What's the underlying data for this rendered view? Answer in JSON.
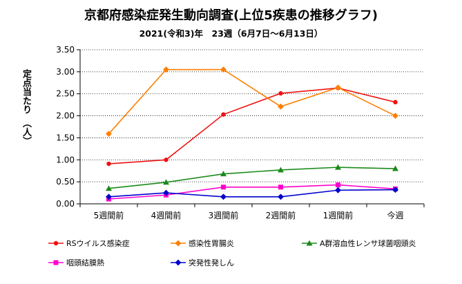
{
  "chart_data": {
    "type": "line",
    "title": "京都府感染症発生動向調査(上位5疾患の推移グラフ)",
    "subtitle": "2021(令和3)年　23週（6月7日～6月13日）",
    "ylabel": "定点当たり　（人）",
    "categories": [
      "5週間前",
      "4週間前",
      "3週間前",
      "2週間前",
      "1週間前",
      "今週"
    ],
    "ylim": [
      0,
      3.5
    ],
    "yticks": [
      "0.00",
      "0.50",
      "1.00",
      "1.50",
      "2.00",
      "2.50",
      "3.00",
      "3.50"
    ],
    "grid": "horizontal",
    "legend_position": "bottom",
    "series": [
      {
        "name": "RSウイルス感染症",
        "color": "#ee1111",
        "marker": "circle",
        "values": [
          0.91,
          1.0,
          2.03,
          2.51,
          2.63,
          2.31
        ]
      },
      {
        "name": "感染性胃腸炎",
        "color": "#ff7f00",
        "marker": "diamond",
        "values": [
          1.59,
          3.05,
          3.05,
          2.21,
          2.64,
          2.0
        ]
      },
      {
        "name": "A群溶血性レンサ球菌咽頭炎",
        "color": "#1a8a1a",
        "marker": "triangle",
        "values": [
          0.35,
          0.49,
          0.68,
          0.77,
          0.83,
          0.8
        ]
      },
      {
        "name": "咽頭結膜熱",
        "color": "#ff00cc",
        "marker": "square",
        "values": [
          0.11,
          0.2,
          0.38,
          0.38,
          0.43,
          0.34
        ]
      },
      {
        "name": "突発性発しん",
        "color": "#0000cc",
        "marker": "diamond",
        "values": [
          0.16,
          0.25,
          0.16,
          0.16,
          0.31,
          0.32
        ]
      }
    ]
  }
}
